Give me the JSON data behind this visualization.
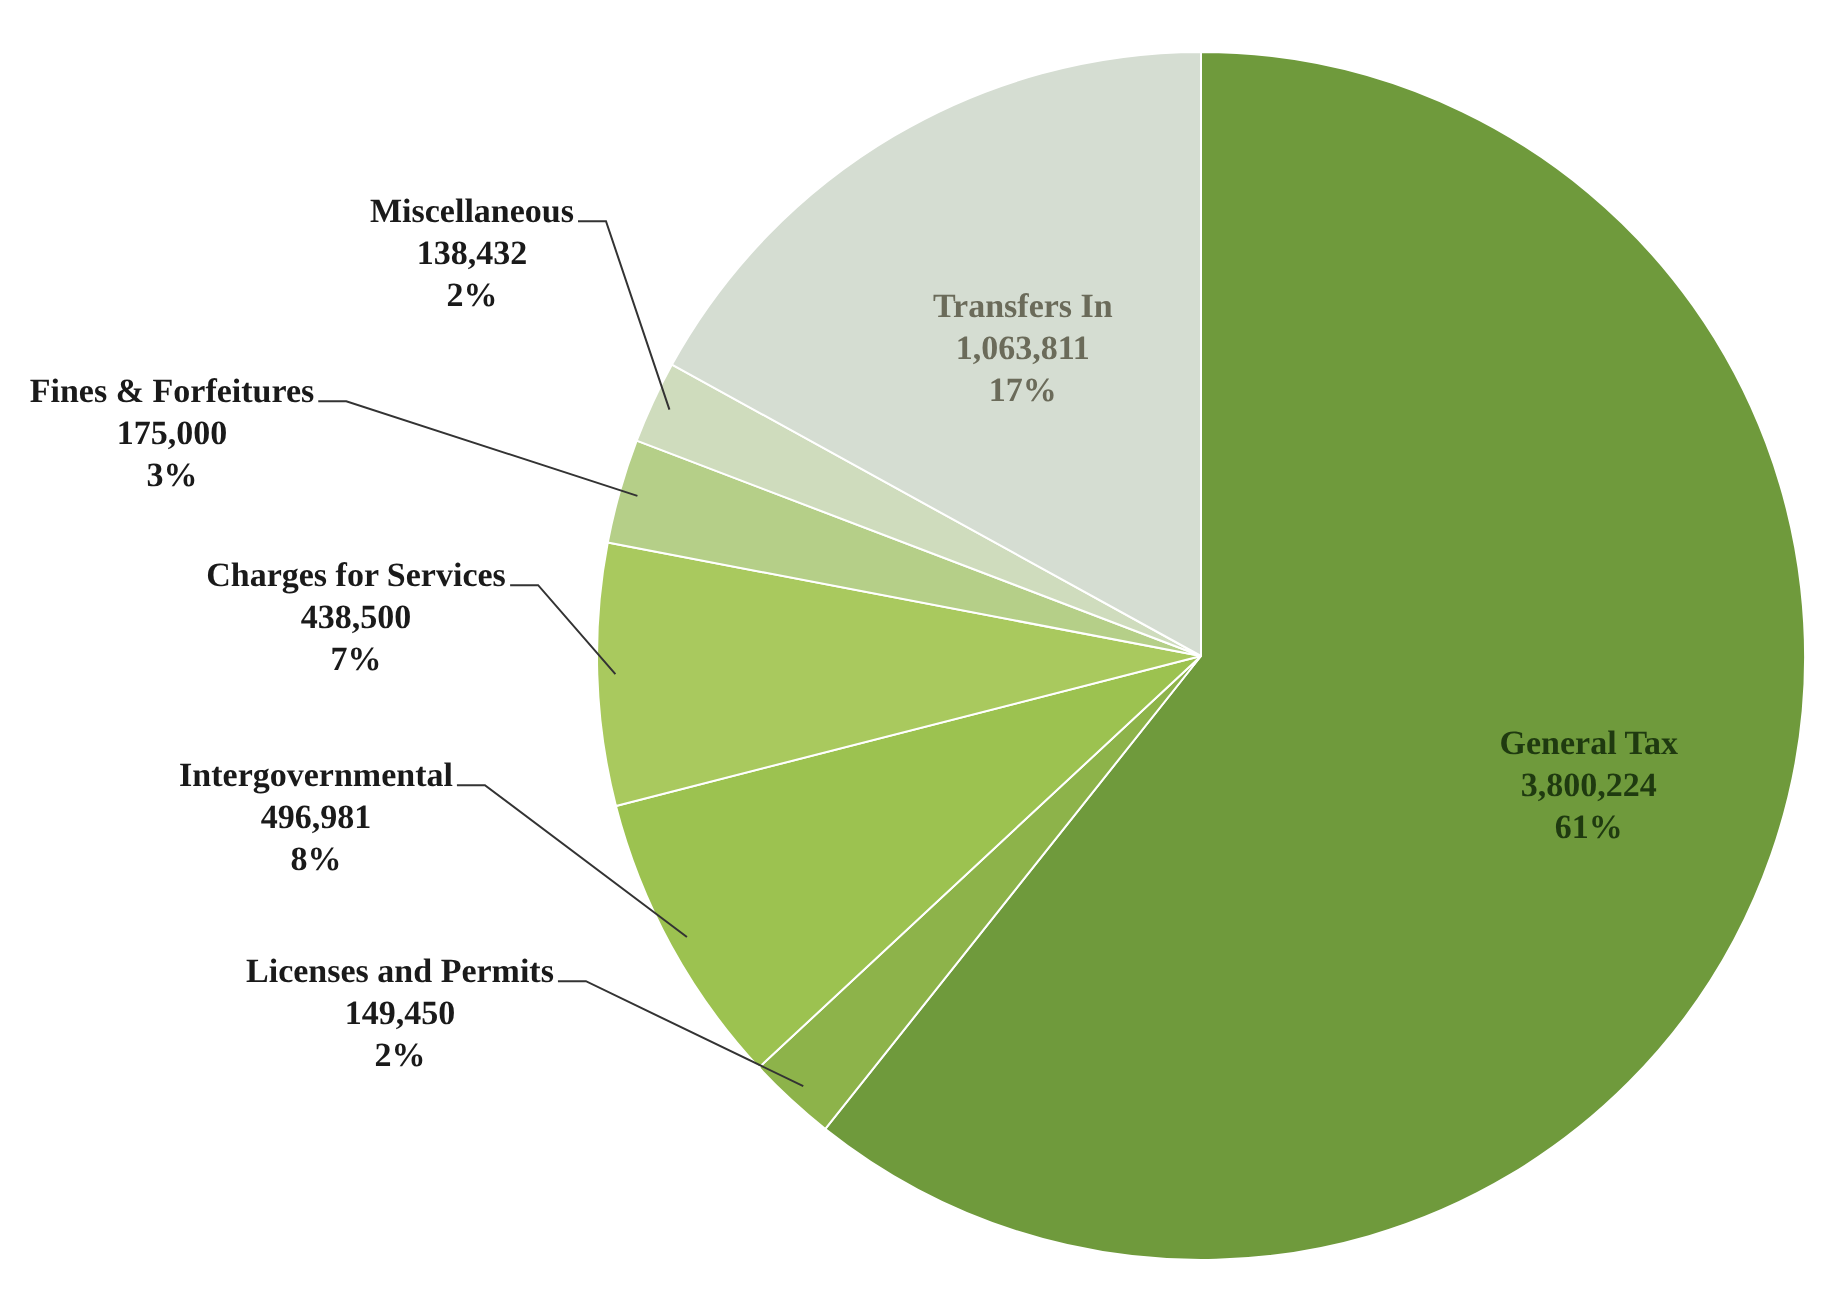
{
  "chart_data": {
    "type": "pie",
    "categories": [
      "General Tax",
      "Licenses and Permits",
      "Intergovernmental",
      "Charges for Services",
      "Fines & Forfeitures",
      "Miscellaneous",
      "Transfers In"
    ],
    "values": [
      3800224,
      149450,
      496981,
      438500,
      175000,
      138432,
      1063811
    ],
    "value_labels": [
      "3,800,224\n61%",
      "149,450\n2%",
      "496,981\n8%",
      "438,500\n7%",
      "175,000\n3%",
      "138,432\n2%",
      "1,063,811\n17%"
    ],
    "colors": [
      "#6f9a3c",
      "#8db34a",
      "#9cc250",
      "#a9c95e",
      "#b5cf88",
      "#cfdcbd",
      "#d5ddd2"
    ],
    "legend": false
  }
}
